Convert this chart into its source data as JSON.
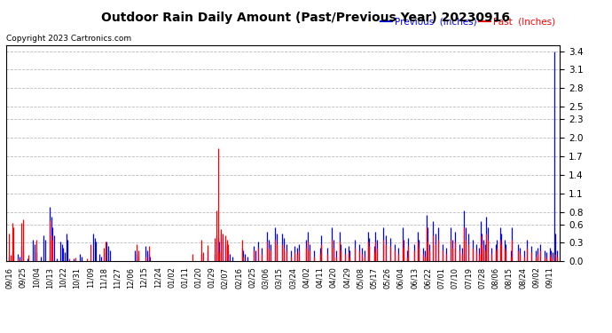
{
  "title": "Outdoor Rain Daily Amount (Past/Previous Year) 20230916",
  "copyright": "Copyright 2023 Cartronics.com",
  "legend_labels": [
    "Previous  (Inches)",
    "Past  (Inches)"
  ],
  "legend_colors": [
    "blue",
    "red"
  ],
  "past_color": "red",
  "previous_color": "blue",
  "background_color": "#ffffff",
  "plot_bg_color": "#ffffff",
  "grid_color": "#aaaaaa",
  "ylim": [
    0.0,
    3.5
  ],
  "yticks": [
    0.0,
    0.3,
    0.6,
    0.8,
    1.1,
    1.4,
    1.7,
    2.0,
    2.3,
    2.5,
    2.8,
    3.1,
    3.4
  ],
  "xtick_labels": [
    "09/16",
    "09/25",
    "10/04",
    "10/13",
    "10/22",
    "10/31",
    "11/09",
    "11/18",
    "11/27",
    "12/06",
    "12/15",
    "12/24",
    "01/02",
    "01/11",
    "01/20",
    "01/29",
    "02/07",
    "02/16",
    "02/25",
    "03/06",
    "03/15",
    "03/24",
    "04/02",
    "04/11",
    "04/20",
    "04/29",
    "05/08",
    "05/17",
    "05/26",
    "06/04",
    "06/13",
    "06/22",
    "07/01",
    "07/10",
    "07/19",
    "07/28",
    "08/06",
    "08/15",
    "08/24",
    "09/02",
    "09/11"
  ],
  "n_days": 366,
  "past_rain": [
    0.45,
    0.1,
    0.62,
    0.55,
    0.0,
    0.0,
    0.05,
    0.0,
    0.62,
    0.68,
    0.0,
    0.0,
    0.0,
    0.1,
    0.0,
    0.0,
    0.0,
    0.0,
    0.35,
    0.0,
    0.0,
    0.0,
    0.0,
    0.0,
    0.0,
    0.0,
    0.0,
    0.67,
    0.42,
    0.35,
    0.0,
    0.0,
    0.0,
    0.0,
    0.0,
    0.0,
    0.0,
    0.0,
    0.0,
    0.0,
    0.05,
    0.0,
    0.0,
    0.0,
    0.07,
    0.0,
    0.0,
    0.0,
    0.0,
    0.0,
    0.0,
    0.0,
    0.05,
    0.0,
    0.28,
    0.0,
    0.0,
    0.0,
    0.0,
    0.0,
    0.0,
    0.0,
    0.0,
    0.22,
    0.32,
    0.0,
    0.0,
    0.0,
    0.0,
    0.0,
    0.0,
    0.0,
    0.0,
    0.0,
    0.0,
    0.0,
    0.0,
    0.0,
    0.0,
    0.0,
    0.0,
    0.0,
    0.0,
    0.0,
    0.0,
    0.28,
    0.18,
    0.0,
    0.0,
    0.0,
    0.0,
    0.08,
    0.0,
    0.25,
    0.0,
    0.0,
    0.0,
    0.0,
    0.0,
    0.0,
    0.0,
    0.0,
    0.0,
    0.0,
    0.0,
    0.0,
    0.0,
    0.0,
    0.0,
    0.0,
    0.0,
    0.0,
    0.0,
    0.0,
    0.0,
    0.0,
    0.0,
    0.0,
    0.0,
    0.0,
    0.0,
    0.0,
    0.12,
    0.0,
    0.0,
    0.0,
    0.0,
    0.0,
    0.35,
    0.15,
    0.0,
    0.0,
    0.27,
    0.0,
    0.0,
    0.0,
    0.0,
    0.38,
    0.82,
    1.83,
    0.15,
    0.52,
    0.45,
    0.0,
    0.42,
    0.35,
    0.28,
    0.0,
    0.0,
    0.0,
    0.0,
    0.0,
    0.0,
    0.0,
    0.0,
    0.35,
    0.08,
    0.0,
    0.0,
    0.0,
    0.0,
    0.0,
    0.0,
    0.18,
    0.0,
    0.0,
    0.22,
    0.0,
    0.12,
    0.0,
    0.0,
    0.0,
    0.32,
    0.22,
    0.18,
    0.0,
    0.0,
    0.35,
    0.28,
    0.0,
    0.0,
    0.0,
    0.28,
    0.22,
    0.0,
    0.18,
    0.0,
    0.0,
    0.08,
    0.0,
    0.15,
    0.0,
    0.12,
    0.18,
    0.0,
    0.0,
    0.0,
    0.0,
    0.22,
    0.32,
    0.18,
    0.0,
    0.0,
    0.08,
    0.0,
    0.0,
    0.0,
    0.12,
    0.28,
    0.0,
    0.0,
    0.0,
    0.12,
    0.0,
    0.0,
    0.35,
    0.22,
    0.0,
    0.08,
    0.0,
    0.32,
    0.18,
    0.0,
    0.0,
    0.12,
    0.0,
    0.15,
    0.08,
    0.0,
    0.0,
    0.22,
    0.0,
    0.0,
    0.18,
    0.0,
    0.12,
    0.0,
    0.08,
    0.0,
    0.32,
    0.25,
    0.0,
    0.0,
    0.15,
    0.32,
    0.22,
    0.0,
    0.0,
    0.0,
    0.35,
    0.0,
    0.28,
    0.0,
    0.0,
    0.25,
    0.0,
    0.0,
    0.18,
    0.0,
    0.12,
    0.0,
    0.0,
    0.35,
    0.22,
    0.0,
    0.08,
    0.25,
    0.0,
    0.0,
    0.0,
    0.18,
    0.0,
    0.32,
    0.22,
    0.0,
    0.0,
    0.12,
    0.08,
    0.55,
    0.32,
    0.18,
    0.0,
    0.42,
    0.0,
    0.28,
    0.0,
    0.35,
    0.0,
    0.0,
    0.18,
    0.0,
    0.12,
    0.0,
    0.0,
    0.35,
    0.22,
    0.0,
    0.32,
    0.0,
    0.0,
    0.18,
    0.0,
    0.12,
    0.55,
    0.35,
    0.0,
    0.28,
    0.0,
    0.0,
    0.22,
    0.0,
    0.18,
    0.0,
    0.12,
    0.42,
    0.28,
    0.22,
    0.18,
    0.45,
    0.35,
    0.0,
    0.12,
    0.0,
    0.0,
    0.18,
    0.22,
    0.0,
    0.35,
    0.28,
    0.0,
    0.22,
    0.18,
    0.0,
    0.0,
    0.08,
    0.35,
    0.0,
    0.0,
    0.0,
    0.18,
    0.12,
    0.0,
    0.0,
    0.08,
    0.0,
    0.22,
    0.0,
    0.0,
    0.15,
    0.0,
    0.0,
    0.08,
    0.12,
    0.0,
    0.18,
    0.0,
    0.0,
    0.08,
    0.05,
    0.0,
    0.12,
    0.08,
    0.05,
    0.0,
    0.12,
    0.08,
    0.0
  ],
  "prev_rain": [
    0.08,
    0.0,
    0.15,
    0.1,
    0.0,
    0.0,
    0.12,
    0.08,
    0.25,
    0.18,
    0.0,
    0.0,
    0.05,
    0.0,
    0.0,
    0.0,
    0.35,
    0.28,
    0.15,
    0.0,
    0.0,
    0.08,
    0.0,
    0.42,
    0.35,
    0.0,
    0.0,
    0.88,
    0.72,
    0.55,
    0.42,
    0.0,
    0.05,
    0.0,
    0.32,
    0.28,
    0.22,
    0.15,
    0.45,
    0.35,
    0.0,
    0.0,
    0.0,
    0.05,
    0.0,
    0.0,
    0.0,
    0.12,
    0.08,
    0.0,
    0.0,
    0.0,
    0.0,
    0.0,
    0.0,
    0.0,
    0.45,
    0.38,
    0.32,
    0.0,
    0.12,
    0.08,
    0.0,
    0.0,
    0.15,
    0.32,
    0.25,
    0.18,
    0.0,
    0.0,
    0.0,
    0.0,
    0.0,
    0.0,
    0.0,
    0.0,
    0.0,
    0.0,
    0.0,
    0.0,
    0.0,
    0.0,
    0.0,
    0.0,
    0.18,
    0.12,
    0.08,
    0.0,
    0.0,
    0.0,
    0.0,
    0.25,
    0.18,
    0.12,
    0.08,
    0.0,
    0.0,
    0.0,
    0.0,
    0.0,
    0.0,
    0.0,
    0.0,
    0.0,
    0.0,
    0.0,
    0.0,
    0.0,
    0.0,
    0.0,
    0.0,
    0.0,
    0.0,
    0.0,
    0.0,
    0.0,
    0.0,
    0.0,
    0.0,
    0.0,
    0.0,
    0.0,
    0.0,
    0.0,
    0.0,
    0.0,
    0.0,
    0.0,
    0.12,
    0.0,
    0.0,
    0.0,
    0.18,
    0.0,
    0.0,
    0.0,
    0.0,
    0.12,
    0.42,
    0.38,
    0.32,
    0.45,
    0.38,
    0.0,
    0.28,
    0.22,
    0.18,
    0.12,
    0.0,
    0.08,
    0.0,
    0.0,
    0.0,
    0.0,
    0.0,
    0.22,
    0.18,
    0.12,
    0.0,
    0.08,
    0.0,
    0.0,
    0.0,
    0.25,
    0.18,
    0.0,
    0.32,
    0.0,
    0.22,
    0.0,
    0.0,
    0.0,
    0.48,
    0.35,
    0.28,
    0.0,
    0.0,
    0.55,
    0.45,
    0.0,
    0.0,
    0.0,
    0.45,
    0.38,
    0.0,
    0.28,
    0.0,
    0.0,
    0.18,
    0.0,
    0.25,
    0.0,
    0.22,
    0.28,
    0.0,
    0.0,
    0.0,
    0.0,
    0.35,
    0.48,
    0.28,
    0.0,
    0.0,
    0.18,
    0.0,
    0.0,
    0.0,
    0.22,
    0.42,
    0.0,
    0.0,
    0.0,
    0.22,
    0.0,
    0.0,
    0.55,
    0.35,
    0.0,
    0.18,
    0.0,
    0.48,
    0.28,
    0.0,
    0.0,
    0.22,
    0.0,
    0.25,
    0.18,
    0.0,
    0.0,
    0.35,
    0.0,
    0.0,
    0.28,
    0.0,
    0.22,
    0.0,
    0.18,
    0.0,
    0.48,
    0.38,
    0.0,
    0.0,
    0.25,
    0.48,
    0.35,
    0.0,
    0.0,
    0.0,
    0.55,
    0.0,
    0.42,
    0.0,
    0.0,
    0.38,
    0.0,
    0.0,
    0.28,
    0.0,
    0.22,
    0.0,
    0.0,
    0.55,
    0.35,
    0.0,
    0.18,
    0.38,
    0.0,
    0.0,
    0.0,
    0.28,
    0.0,
    0.48,
    0.35,
    0.0,
    0.0,
    0.22,
    0.18,
    0.75,
    0.55,
    0.28,
    0.0,
    0.65,
    0.0,
    0.45,
    0.0,
    0.55,
    0.0,
    0.0,
    0.28,
    0.0,
    0.22,
    0.0,
    0.0,
    0.55,
    0.35,
    0.0,
    0.48,
    0.0,
    0.0,
    0.28,
    0.0,
    0.22,
    0.82,
    0.55,
    0.0,
    0.45,
    0.0,
    0.0,
    0.35,
    0.0,
    0.28,
    0.0,
    0.22,
    0.65,
    0.45,
    0.35,
    0.28,
    0.72,
    0.55,
    0.0,
    0.22,
    0.0,
    0.0,
    0.28,
    0.35,
    0.0,
    0.55,
    0.45,
    0.0,
    0.35,
    0.28,
    0.0,
    0.0,
    0.18,
    0.55,
    0.0,
    0.0,
    0.0,
    0.28,
    0.22,
    0.0,
    0.0,
    0.18,
    0.0,
    0.35,
    0.0,
    0.0,
    0.25,
    0.0,
    0.0,
    0.18,
    0.22,
    0.0,
    0.28,
    0.0,
    0.0,
    0.18,
    0.15,
    0.0,
    0.22,
    0.18,
    0.15,
    3.4,
    0.45,
    0.18,
    0.0
  ]
}
